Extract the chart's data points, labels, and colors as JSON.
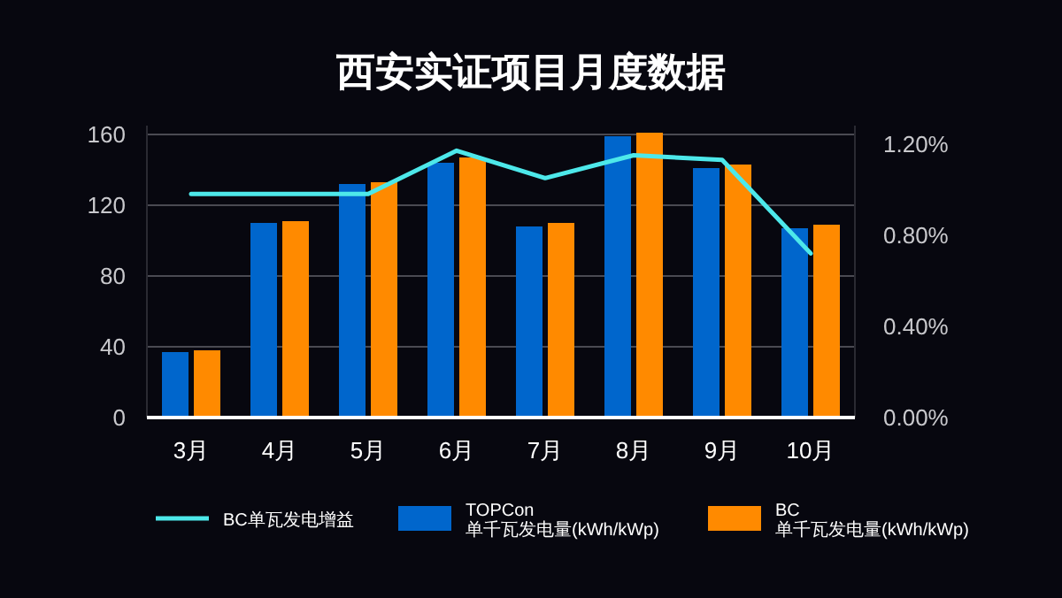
{
  "chart_data": {
    "type": "bar",
    "title": "西安实证项目月度数据",
    "categories": [
      "3月",
      "4月",
      "5月",
      "6月",
      "7月",
      "8月",
      "9月",
      "10月"
    ],
    "series": [
      {
        "name": "BC单瓦发电增益",
        "type": "line",
        "axis": "y2",
        "color": "#4de8ea",
        "values": [
          0.98,
          0.98,
          0.98,
          1.17,
          1.05,
          1.15,
          1.13,
          0.72
        ]
      },
      {
        "name": "TOPCon\n单千瓦发电量(kWh/kWp)",
        "color": "#0066cc",
        "values": [
          37,
          110,
          132,
          144,
          108,
          159,
          141,
          107
        ]
      },
      {
        "name": "BC\n单千瓦发电量(kWh/kWp)",
        "color": "#ff8a00",
        "values": [
          38,
          111,
          133,
          147,
          110,
          161,
          143,
          109
        ]
      }
    ],
    "ylim": [
      0,
      165
    ],
    "yticks": [
      0,
      40,
      80,
      120,
      160
    ],
    "y2lim": [
      0,
      1.28
    ],
    "y2ticks": [
      {
        "value": 0,
        "label": "0.00%"
      },
      {
        "value": 0.4,
        "label": "0.40%"
      },
      {
        "value": 0.8,
        "label": "0.80%"
      },
      {
        "value": 1.2,
        "label": "1.20%"
      }
    ],
    "grid": "y",
    "legend": "bottom"
  }
}
